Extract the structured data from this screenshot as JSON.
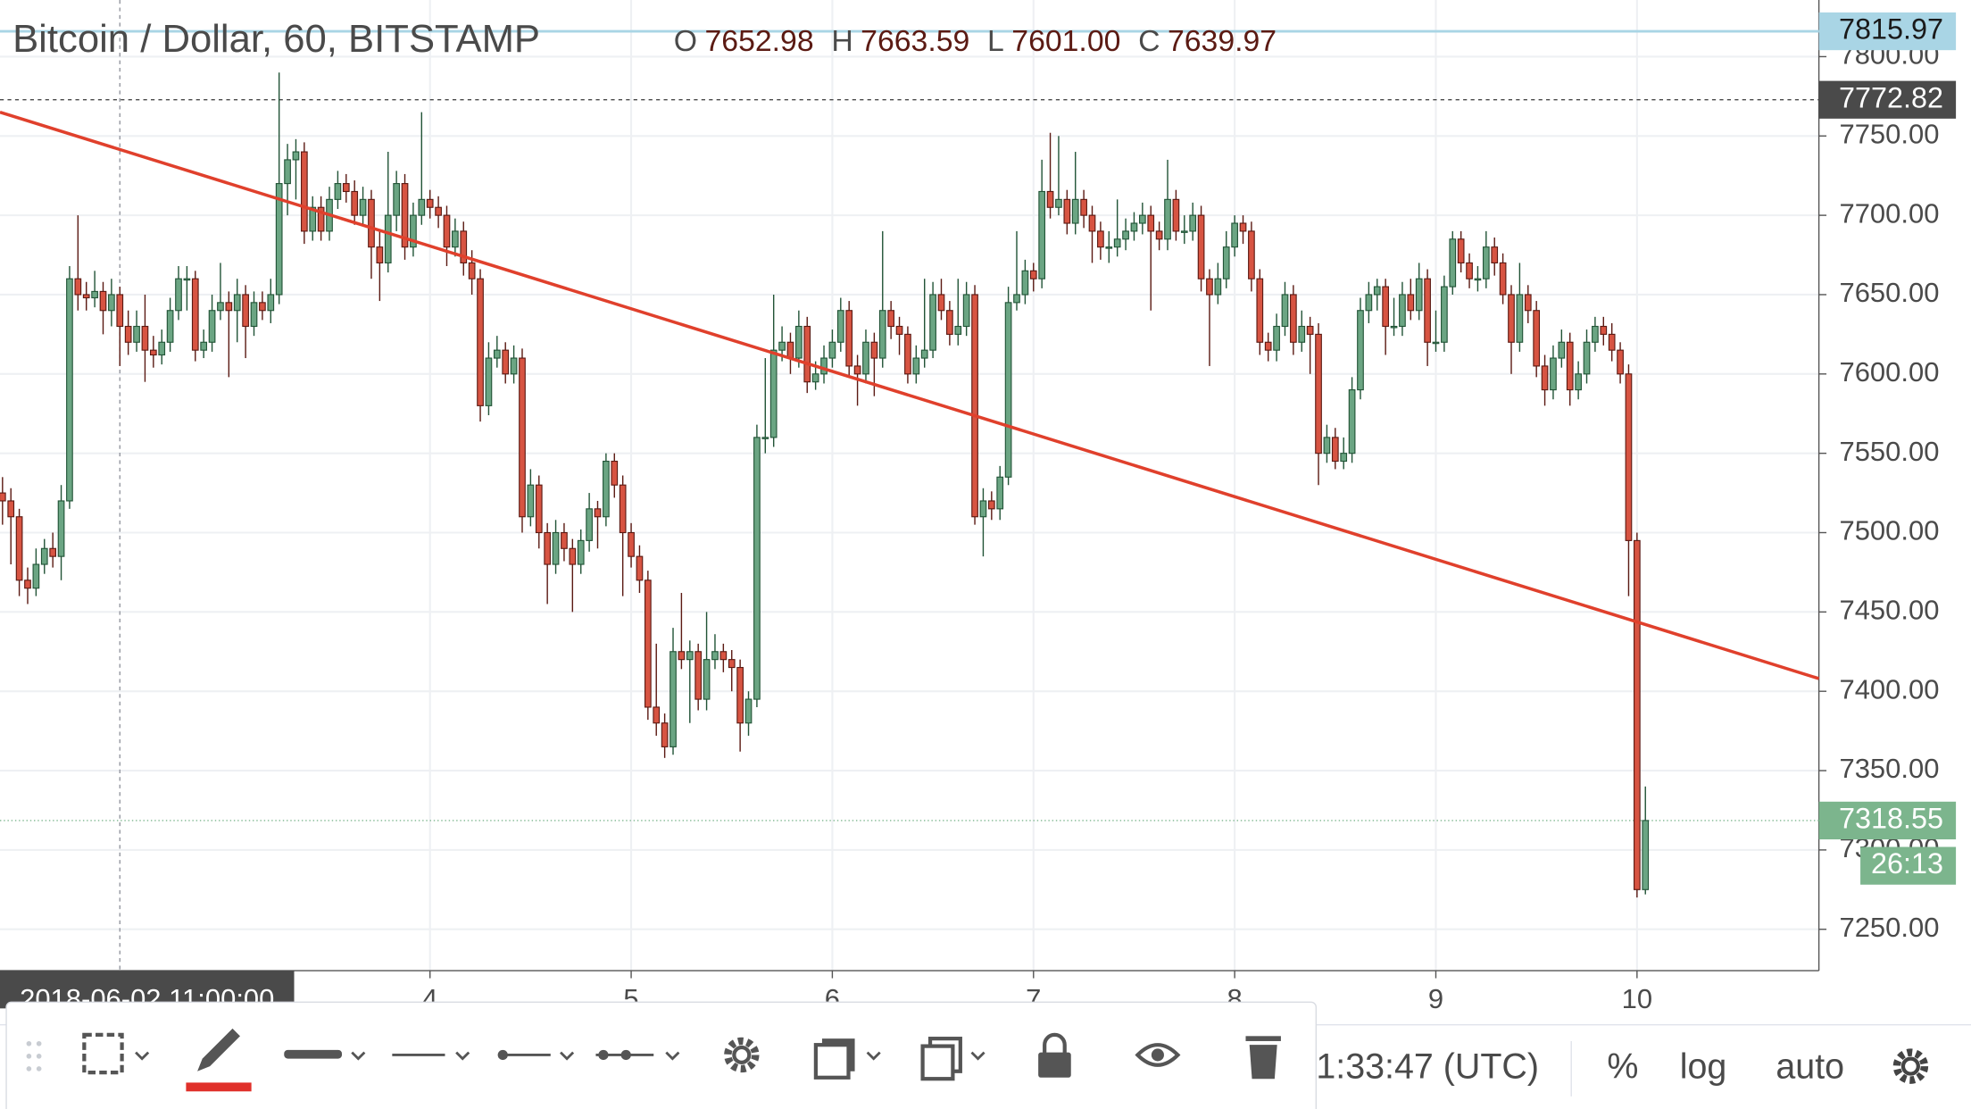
{
  "chart_data": {
    "type": "candlestick",
    "title": "Bitcoin / Dollar, 60, BITSTAMP",
    "ohlc_header": [
      {
        "label": "O",
        "value": 7652.98,
        "value_label": "7652.98"
      },
      {
        "label": "H",
        "value": 7663.59,
        "value_label": "7663.59"
      },
      {
        "label": "L",
        "value": 7601,
        "value_label": "7601.00"
      },
      {
        "label": "C",
        "value": 7639.97,
        "value_label": "7639.97"
      }
    ],
    "up_color": "#6ba583",
    "down_color": "#d75442",
    "up_border": "#225437",
    "down_border": "#5b1a13",
    "grid": true,
    "xlim": [
      -0.3,
      216.7
    ],
    "xticks": [
      {
        "value": 51,
        "label": "4"
      },
      {
        "value": 75,
        "label": "5"
      },
      {
        "value": 99,
        "label": "6"
      },
      {
        "value": 123,
        "label": "7"
      },
      {
        "value": 147,
        "label": "8"
      },
      {
        "value": 171,
        "label": "9"
      },
      {
        "value": 195,
        "label": "10"
      }
    ],
    "ylim": [
      7223.9,
      7835.7
    ],
    "yticks": [
      {
        "value": 7250,
        "label": "7250.00"
      },
      {
        "value": 7300,
        "label": "7300.00"
      },
      {
        "value": 7350,
        "label": "7350.00"
      },
      {
        "value": 7400,
        "label": "7400.00"
      },
      {
        "value": 7450,
        "label": "7450.00"
      },
      {
        "value": 7500,
        "label": "7500.00"
      },
      {
        "value": 7550,
        "label": "7550.00"
      },
      {
        "value": 7600,
        "label": "7600.00"
      },
      {
        "value": 7650,
        "label": "7650.00"
      },
      {
        "value": 7700,
        "label": "7700.00"
      },
      {
        "value": 7750,
        "label": "7750.00"
      },
      {
        "value": 7800,
        "label": "7800.00"
      }
    ],
    "ohlc": [
      [
        7525,
        7535,
        7505,
        7520
      ],
      [
        7520,
        7528,
        7480,
        7510
      ],
      [
        7510,
        7515,
        7460,
        7470
      ],
      [
        7470,
        7478,
        7455,
        7465
      ],
      [
        7465,
        7490,
        7460,
        7480
      ],
      [
        7480,
        7496,
        7474,
        7490
      ],
      [
        7490,
        7500,
        7478,
        7485
      ],
      [
        7485,
        7530,
        7470,
        7520
      ],
      [
        7520,
        7668,
        7515,
        7660
      ],
      [
        7660,
        7700,
        7640,
        7650
      ],
      [
        7650,
        7658,
        7640,
        7648
      ],
      [
        7648,
        7665,
        7642,
        7652
      ],
      [
        7652,
        7658,
        7625,
        7640
      ],
      [
        7640,
        7660,
        7630,
        7650
      ],
      [
        7650,
        7655,
        7605,
        7630
      ],
      [
        7630,
        7640,
        7612,
        7620
      ],
      [
        7620,
        7640,
        7614,
        7630
      ],
      [
        7630,
        7650,
        7595,
        7615
      ],
      [
        7615,
        7624,
        7604,
        7612
      ],
      [
        7612,
        7628,
        7606,
        7620
      ],
      [
        7620,
        7648,
        7614,
        7640
      ],
      [
        7640,
        7668,
        7634,
        7660
      ],
      [
        7660,
        7668,
        7640,
        7660
      ],
      [
        7660,
        7665,
        7608,
        7615
      ],
      [
        7615,
        7628,
        7610,
        7620
      ],
      [
        7620,
        7650,
        7614,
        7640
      ],
      [
        7640,
        7670,
        7634,
        7645
      ],
      [
        7645,
        7652,
        7598,
        7640
      ],
      [
        7640,
        7660,
        7620,
        7650
      ],
      [
        7650,
        7656,
        7610,
        7630
      ],
      [
        7630,
        7652,
        7624,
        7645
      ],
      [
        7645,
        7652,
        7634,
        7640
      ],
      [
        7640,
        7660,
        7632,
        7650
      ],
      [
        7650,
        7790,
        7644,
        7720
      ],
      [
        7720,
        7745,
        7700,
        7735
      ],
      [
        7735,
        7748,
        7710,
        7740
      ],
      [
        7740,
        7746,
        7682,
        7690
      ],
      [
        7690,
        7712,
        7684,
        7705
      ],
      [
        7705,
        7712,
        7684,
        7690
      ],
      [
        7690,
        7718,
        7684,
        7710
      ],
      [
        7710,
        7728,
        7704,
        7720
      ],
      [
        7720,
        7726,
        7708,
        7715
      ],
      [
        7715,
        7722,
        7694,
        7700
      ],
      [
        7700,
        7718,
        7694,
        7710
      ],
      [
        7710,
        7716,
        7660,
        7680
      ],
      [
        7680,
        7690,
        7646,
        7670
      ],
      [
        7670,
        7740,
        7664,
        7700
      ],
      [
        7700,
        7728,
        7690,
        7720
      ],
      [
        7720,
        7726,
        7672,
        7680
      ],
      [
        7680,
        7708,
        7674,
        7700
      ],
      [
        7700,
        7765,
        7694,
        7710
      ],
      [
        7710,
        7716,
        7698,
        7705
      ],
      [
        7705,
        7712,
        7692,
        7700
      ],
      [
        7700,
        7706,
        7668,
        7680
      ],
      [
        7680,
        7698,
        7674,
        7690
      ],
      [
        7690,
        7696,
        7662,
        7670
      ],
      [
        7670,
        7678,
        7650,
        7660
      ],
      [
        7660,
        7666,
        7570,
        7580
      ],
      [
        7580,
        7620,
        7574,
        7610
      ],
      [
        7610,
        7624,
        7604,
        7615
      ],
      [
        7615,
        7620,
        7594,
        7600
      ],
      [
        7600,
        7618,
        7594,
        7610
      ],
      [
        7610,
        7616,
        7500,
        7510
      ],
      [
        7510,
        7540,
        7504,
        7530
      ],
      [
        7530,
        7536,
        7490,
        7500
      ],
      [
        7500,
        7506,
        7455,
        7480
      ],
      [
        7480,
        7508,
        7474,
        7500
      ],
      [
        7500,
        7506,
        7482,
        7490
      ],
      [
        7490,
        7496,
        7450,
        7480
      ],
      [
        7480,
        7502,
        7474,
        7495
      ],
      [
        7495,
        7525,
        7488,
        7515
      ],
      [
        7515,
        7520,
        7490,
        7510
      ],
      [
        7510,
        7550,
        7504,
        7545
      ],
      [
        7545,
        7550,
        7522,
        7530
      ],
      [
        7530,
        7536,
        7460,
        7500
      ],
      [
        7500,
        7506,
        7478,
        7485
      ],
      [
        7485,
        7492,
        7462,
        7470
      ],
      [
        7470,
        7476,
        7382,
        7390
      ],
      [
        7390,
        7430,
        7372,
        7380
      ],
      [
        7380,
        7386,
        7358,
        7365
      ],
      [
        7365,
        7440,
        7360,
        7425
      ],
      [
        7425,
        7462,
        7414,
        7420
      ],
      [
        7420,
        7432,
        7380,
        7425
      ],
      [
        7425,
        7430,
        7388,
        7395
      ],
      [
        7395,
        7450,
        7388,
        7420
      ],
      [
        7420,
        7436,
        7414,
        7425
      ],
      [
        7425,
        7430,
        7412,
        7420
      ],
      [
        7420,
        7426,
        7400,
        7415
      ],
      [
        7415,
        7420,
        7362,
        7380
      ],
      [
        7380,
        7400,
        7372,
        7395
      ],
      [
        7395,
        7568,
        7390,
        7560
      ],
      [
        7560,
        7610,
        7550,
        7560
      ],
      [
        7560,
        7650,
        7554,
        7615
      ],
      [
        7615,
        7630,
        7608,
        7620
      ],
      [
        7620,
        7626,
        7600,
        7610
      ],
      [
        7610,
        7640,
        7604,
        7630
      ],
      [
        7630,
        7636,
        7588,
        7595
      ],
      [
        7595,
        7608,
        7590,
        7600
      ],
      [
        7600,
        7618,
        7594,
        7610
      ],
      [
        7610,
        7628,
        7604,
        7620
      ],
      [
        7620,
        7648,
        7614,
        7640
      ],
      [
        7640,
        7646,
        7598,
        7605
      ],
      [
        7605,
        7612,
        7580,
        7600
      ],
      [
        7600,
        7628,
        7594,
        7620
      ],
      [
        7620,
        7626,
        7586,
        7610
      ],
      [
        7610,
        7690,
        7604,
        7640
      ],
      [
        7640,
        7646,
        7622,
        7630
      ],
      [
        7630,
        7636,
        7612,
        7625
      ],
      [
        7625,
        7630,
        7594,
        7600
      ],
      [
        7600,
        7618,
        7594,
        7610
      ],
      [
        7610,
        7660,
        7604,
        7615
      ],
      [
        7615,
        7658,
        7610,
        7650
      ],
      [
        7650,
        7660,
        7634,
        7640
      ],
      [
        7640,
        7646,
        7618,
        7625
      ],
      [
        7625,
        7660,
        7618,
        7630
      ],
      [
        7630,
        7658,
        7624,
        7650
      ],
      [
        7650,
        7656,
        7505,
        7510
      ],
      [
        7510,
        7528,
        7485,
        7520
      ],
      [
        7520,
        7526,
        7508,
        7515
      ],
      [
        7515,
        7542,
        7508,
        7535
      ],
      [
        7535,
        7655,
        7530,
        7645
      ],
      [
        7645,
        7690,
        7640,
        7650
      ],
      [
        7650,
        7672,
        7644,
        7665
      ],
      [
        7665,
        7670,
        7652,
        7660
      ],
      [
        7660,
        7735,
        7654,
        7715
      ],
      [
        7715,
        7752,
        7698,
        7705
      ],
      [
        7705,
        7750,
        7700,
        7710
      ],
      [
        7710,
        7716,
        7688,
        7695
      ],
      [
        7695,
        7740,
        7688,
        7710
      ],
      [
        7710,
        7716,
        7692,
        7700
      ],
      [
        7700,
        7706,
        7670,
        7690
      ],
      [
        7690,
        7696,
        7672,
        7680
      ],
      [
        7680,
        7690,
        7670,
        7680
      ],
      [
        7680,
        7710,
        7674,
        7685
      ],
      [
        7685,
        7698,
        7678,
        7690
      ],
      [
        7690,
        7702,
        7684,
        7695
      ],
      [
        7695,
        7708,
        7688,
        7700
      ],
      [
        7700,
        7706,
        7640,
        7690
      ],
      [
        7690,
        7696,
        7678,
        7685
      ],
      [
        7685,
        7735,
        7678,
        7710
      ],
      [
        7710,
        7716,
        7684,
        7690
      ],
      [
        7690,
        7700,
        7682,
        7690
      ],
      [
        7690,
        7708,
        7684,
        7700
      ],
      [
        7700,
        7706,
        7652,
        7660
      ],
      [
        7660,
        7666,
        7605,
        7650
      ],
      [
        7650,
        7670,
        7644,
        7660
      ],
      [
        7660,
        7690,
        7654,
        7680
      ],
      [
        7680,
        7700,
        7674,
        7695
      ],
      [
        7695,
        7700,
        7682,
        7690
      ],
      [
        7690,
        7696,
        7652,
        7660
      ],
      [
        7660,
        7666,
        7612,
        7620
      ],
      [
        7620,
        7626,
        7608,
        7615
      ],
      [
        7615,
        7638,
        7608,
        7630
      ],
      [
        7630,
        7658,
        7624,
        7650
      ],
      [
        7650,
        7656,
        7612,
        7620
      ],
      [
        7620,
        7640,
        7614,
        7630
      ],
      [
        7630,
        7636,
        7600,
        7625
      ],
      [
        7625,
        7632,
        7530,
        7550
      ],
      [
        7550,
        7568,
        7544,
        7560
      ],
      [
        7560,
        7566,
        7540,
        7545
      ],
      [
        7545,
        7560,
        7540,
        7550
      ],
      [
        7550,
        7598,
        7544,
        7590
      ],
      [
        7590,
        7648,
        7584,
        7640
      ],
      [
        7640,
        7658,
        7632,
        7650
      ],
      [
        7650,
        7660,
        7640,
        7655
      ],
      [
        7655,
        7660,
        7612,
        7630
      ],
      [
        7630,
        7648,
        7624,
        7630
      ],
      [
        7630,
        7658,
        7624,
        7650
      ],
      [
        7650,
        7660,
        7634,
        7640
      ],
      [
        7640,
        7670,
        7634,
        7660
      ],
      [
        7660,
        7666,
        7605,
        7620
      ],
      [
        7620,
        7640,
        7614,
        7620
      ],
      [
        7620,
        7662,
        7614,
        7655
      ],
      [
        7655,
        7690,
        7650,
        7685
      ],
      [
        7685,
        7690,
        7664,
        7670
      ],
      [
        7670,
        7676,
        7654,
        7660
      ],
      [
        7660,
        7668,
        7652,
        7660
      ],
      [
        7660,
        7690,
        7654,
        7680
      ],
      [
        7680,
        7686,
        7662,
        7670
      ],
      [
        7670,
        7676,
        7644,
        7650
      ],
      [
        7650,
        7656,
        7600,
        7620
      ],
      [
        7620,
        7670,
        7614,
        7650
      ],
      [
        7650,
        7656,
        7632,
        7640
      ],
      [
        7640,
        7646,
        7598,
        7605
      ],
      [
        7605,
        7612,
        7580,
        7590
      ],
      [
        7590,
        7618,
        7584,
        7610
      ],
      [
        7610,
        7628,
        7604,
        7620
      ],
      [
        7620,
        7626,
        7580,
        7590
      ],
      [
        7590,
        7608,
        7584,
        7600
      ],
      [
        7600,
        7628,
        7594,
        7620
      ],
      [
        7620,
        7636,
        7614,
        7630
      ],
      [
        7630,
        7636,
        7618,
        7625
      ],
      [
        7625,
        7632,
        7608,
        7615
      ],
      [
        7615,
        7620,
        7594,
        7600
      ],
      [
        7600,
        7606,
        7460,
        7495
      ],
      [
        7495,
        7500,
        7270,
        7275
      ],
      [
        7275,
        7340,
        7272,
        7318.55
      ]
    ],
    "trendline": {
      "x": [
        -0.3,
        216.7
      ],
      "y": [
        7765,
        7408
      ],
      "color": "#e0402c"
    },
    "price_lines": [
      {
        "value": 7815.97,
        "label": "7815.97",
        "color": "#a9d5e5",
        "text_color": "#1a1a1a",
        "style": "solid"
      },
      {
        "value": 7772.82,
        "label": "7772.82",
        "color": "#4a4a4a",
        "text_color": "#ffffff",
        "style": "dashed"
      },
      {
        "value": 7318.55,
        "label": "7318.55",
        "color": "#7cb58d",
        "text_color": "#ffffff",
        "style": "dotted"
      }
    ],
    "countdown": "26:13",
    "crosshair_x": {
      "value": 14,
      "label": "2018-06-02 11:00:00"
    },
    "toolbar": {
      "clock": "1:33:47 (UTC)",
      "percent": "%",
      "log": "log",
      "auto": "auto"
    }
  }
}
